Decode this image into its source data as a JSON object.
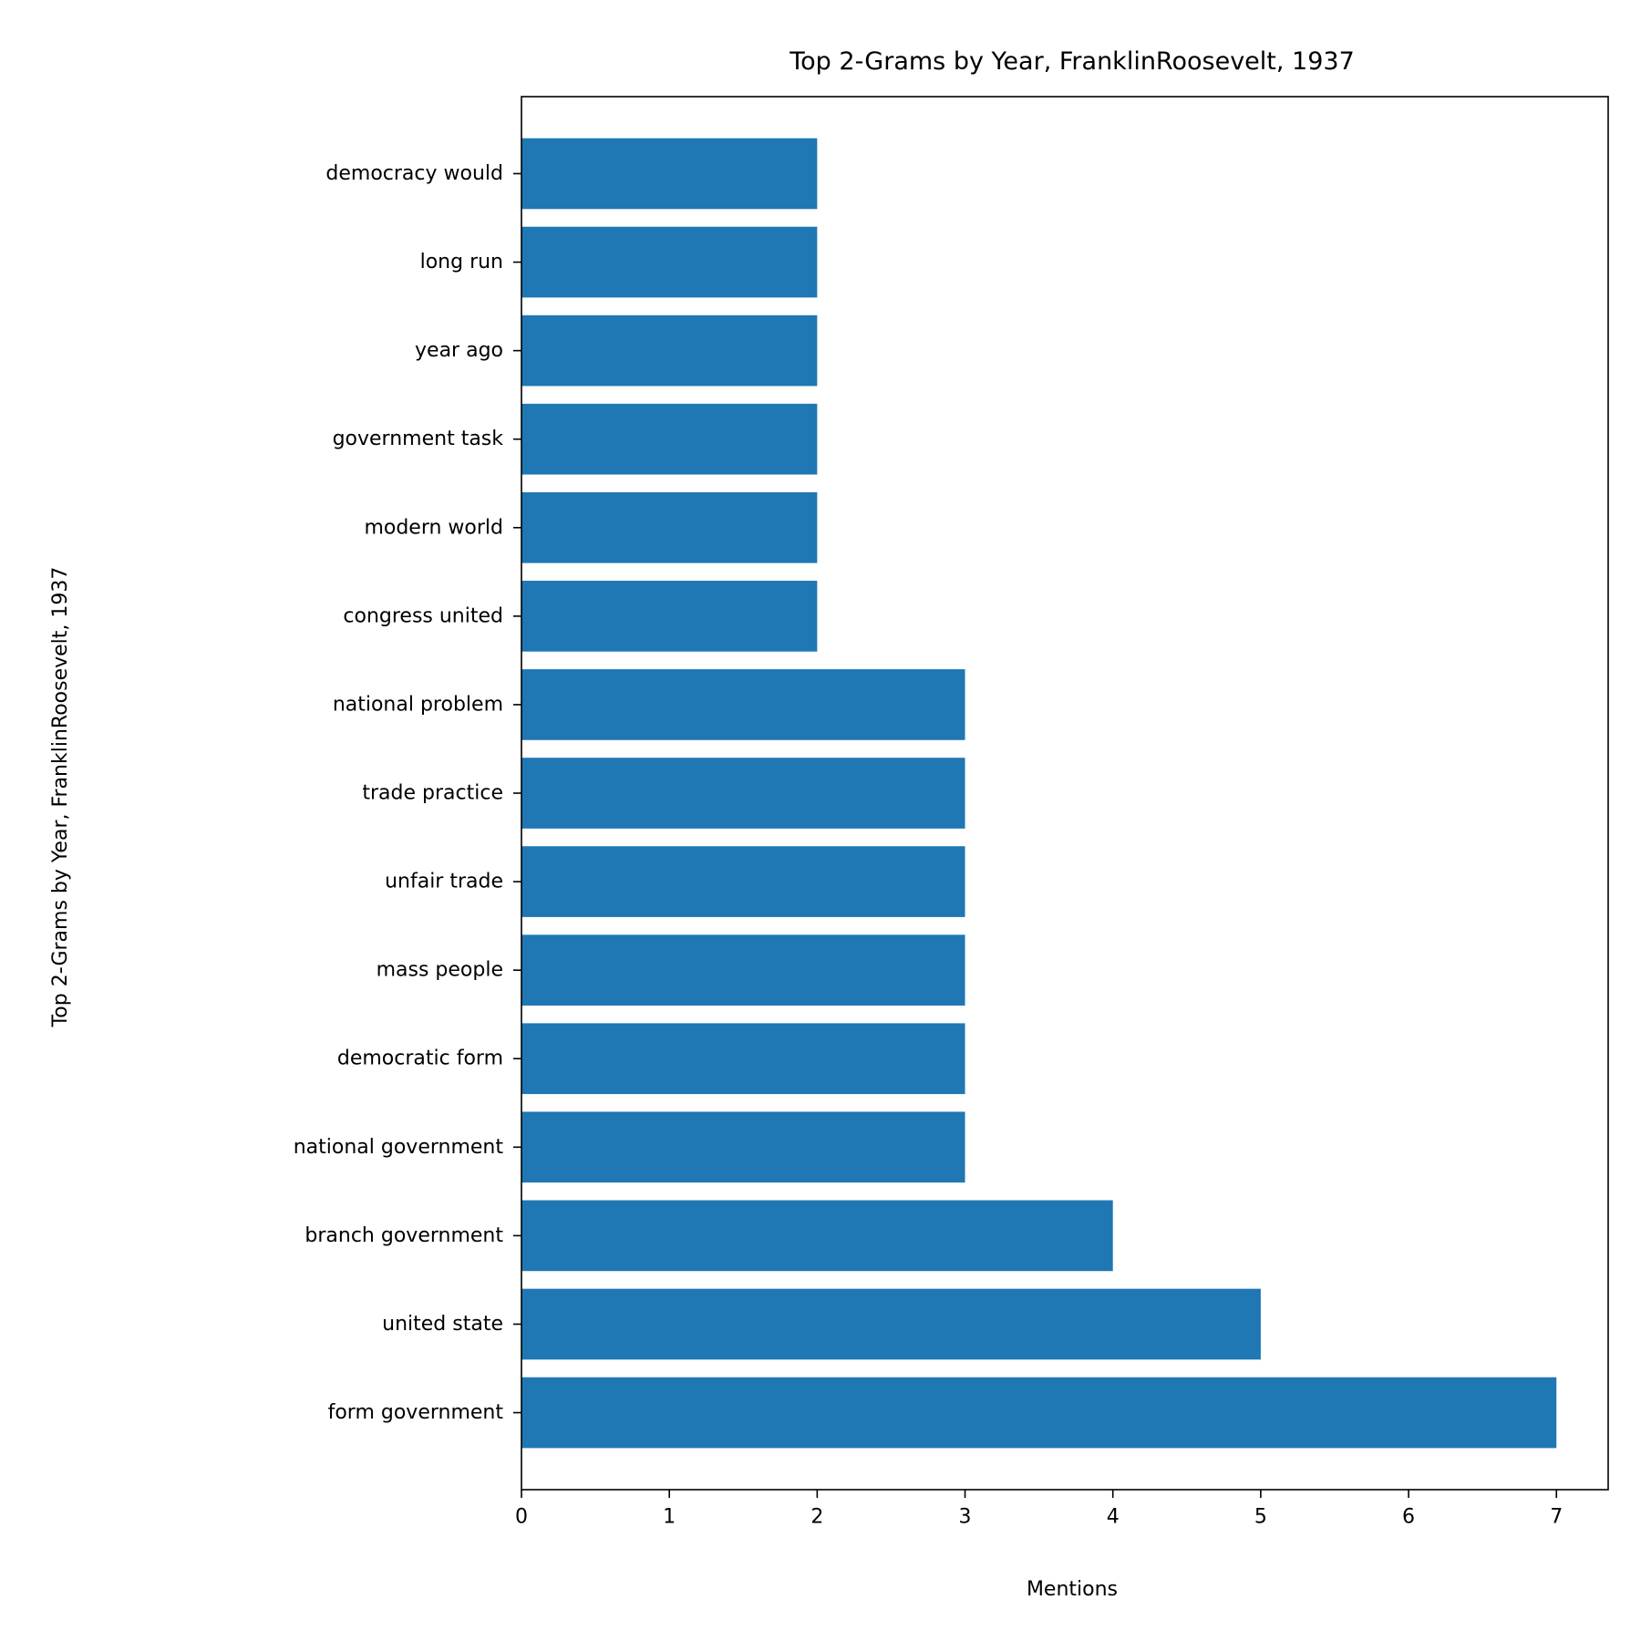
{
  "chart_data": {
    "type": "bar",
    "orientation": "horizontal",
    "title": "Top 2-Grams by Year, FranklinRoosevelt, 1937",
    "xlabel": "Mentions",
    "ylabel": "Top 2-Grams by Year, FranklinRoosevelt, 1937",
    "categories": [
      "form government",
      "united state",
      "branch government",
      "national government",
      "democratic form",
      "mass people",
      "unfair trade",
      "trade practice",
      "national problem",
      "congress united",
      "modern world",
      "government task",
      "year ago",
      "long run",
      "democracy would"
    ],
    "values": [
      7,
      5,
      4,
      3,
      3,
      3,
      3,
      3,
      3,
      2,
      2,
      2,
      2,
      2,
      2
    ],
    "xlim": [
      0,
      7.35
    ],
    "xticks": [
      0,
      1,
      2,
      3,
      4,
      5,
      6,
      7
    ],
    "grid": false,
    "bar_color": "#1f77b4"
  }
}
